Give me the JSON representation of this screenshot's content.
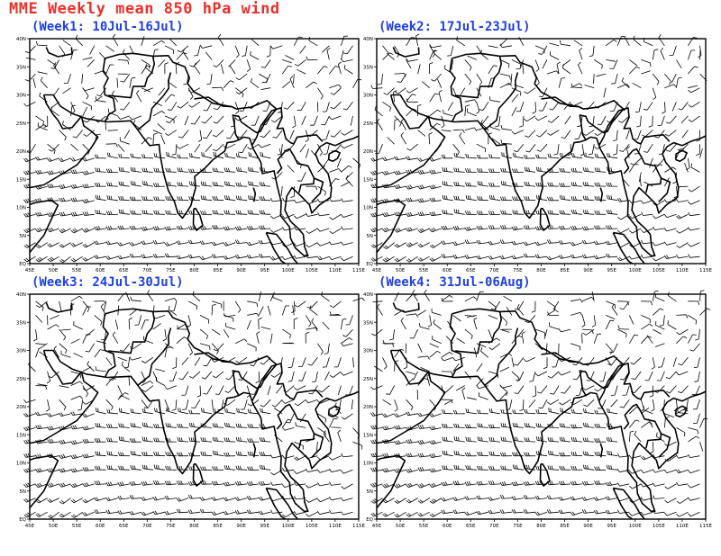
{
  "title": "MME Weekly mean 850 hPa wind",
  "map": {
    "lon_range": [
      45,
      115
    ],
    "lat_range": [
      0,
      40
    ],
    "lon_ticks": [
      "45E",
      "50E",
      "55E",
      "60E",
      "65E",
      "70E",
      "75E",
      "80E",
      "85E",
      "90E",
      "95E",
      "100E",
      "105E",
      "110E",
      "115E"
    ],
    "lat_ticks": [
      "EQ",
      "5N",
      "10N",
      "15N",
      "20N",
      "25N",
      "30N",
      "35N",
      "40N"
    ]
  },
  "panels": [
    {
      "label": "(Week1: 10Jul-16Jul)"
    },
    {
      "label": "(Week2: 17Jul-23Jul)"
    },
    {
      "label": "(Week3: 24Jul-30Jul)"
    },
    {
      "label": "(Week4: 31Jul-06Aug)"
    }
  ],
  "colors": {
    "title": "#e8312a",
    "panel_label": "#1f3fe0",
    "coast": "#000000"
  }
}
